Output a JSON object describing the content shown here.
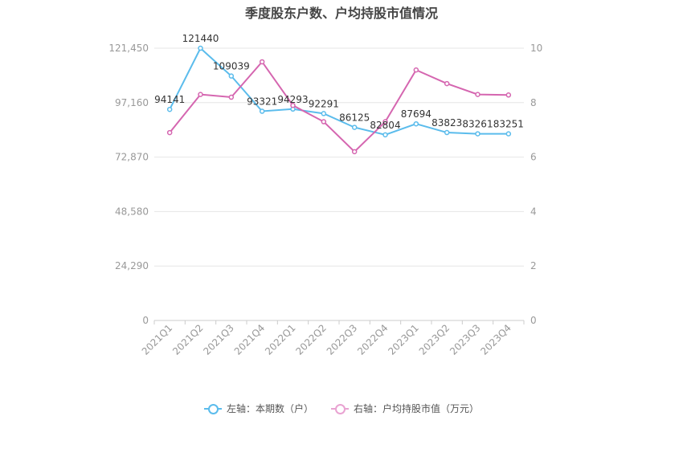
{
  "chart_data": {
    "type": "line",
    "title": "季度股东户数、户均持股市值情况",
    "categories": [
      "2021Q1",
      "2021Q2",
      "2021Q3",
      "2021Q4",
      "2022Q1",
      "2022Q2",
      "2022Q3",
      "2022Q4",
      "2023Q1",
      "2023Q2",
      "2023Q3",
      "2023Q4"
    ],
    "series": [
      {
        "name": "左轴：本期数（户）",
        "axis": "left",
        "color": "#5bbcec",
        "values": [
          94141,
          121440,
          109039,
          93321,
          94293,
          92291,
          86125,
          82804,
          87694,
          83823,
          83261,
          83251
        ],
        "labels": [
          "94141",
          "121440",
          "109039",
          "93321",
          "94293",
          "92291",
          "86125",
          "82804",
          "87694",
          "83823",
          "83261",
          "83251"
        ]
      },
      {
        "name": "右轴：户均持股市值（万元）",
        "axis": "right",
        "color": "#d566b0",
        "values": [
          6.9,
          8.3,
          8.2,
          9.5,
          7.9,
          7.3,
          6.2,
          7.3,
          9.2,
          8.7,
          8.3,
          8.28
        ]
      }
    ],
    "left_axis": {
      "ticks": [
        "0",
        "24,290",
        "48,580",
        "72,870",
        "97,160",
        "121,450"
      ],
      "min": 0,
      "max": 121450
    },
    "right_axis": {
      "ticks": [
        "0",
        "2",
        "4",
        "6",
        "8",
        "10"
      ],
      "min": 0,
      "max": 10
    },
    "grid": true,
    "legend_position": "bottom"
  }
}
